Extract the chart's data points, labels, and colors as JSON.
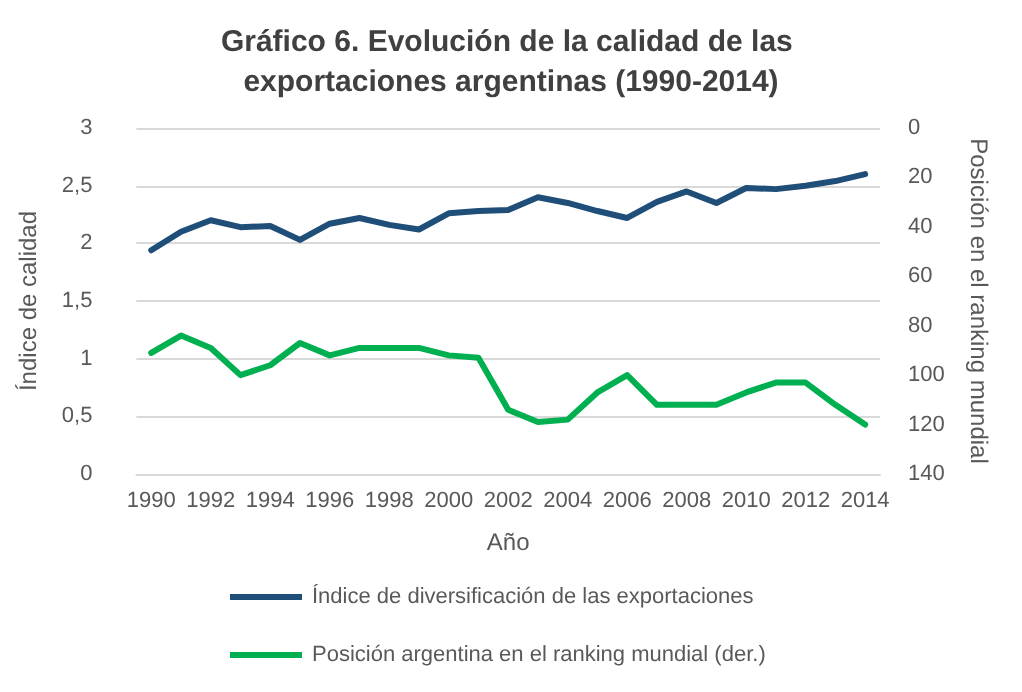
{
  "chart_data": {
    "type": "line",
    "title": "Gráfico 6. Evolución de la calidad de las exportaciones argentinas (1990-2014)",
    "xlabel": "Año",
    "ylabel": "Índice de calidad",
    "y2label": "Posición en el ranking mundial",
    "categories": [
      "1990",
      null,
      "1992",
      null,
      "1994",
      null,
      "1996",
      null,
      "1998",
      null,
      "2000",
      null,
      "2002",
      null,
      "2004",
      null,
      "2006",
      null,
      "2008",
      null,
      "2010",
      null,
      "2012",
      null,
      "2014"
    ],
    "series": [
      {
        "name": "Índice de diversificación de las exportaciones",
        "color": "#1f4e79",
        "values": [
          1.94,
          2.1,
          2.2,
          2.14,
          2.15,
          2.03,
          2.17,
          2.22,
          2.16,
          2.12,
          2.26,
          2.28,
          2.29,
          2.4,
          2.35,
          2.28,
          2.22,
          2.36,
          2.45,
          2.35,
          2.48,
          2.47,
          2.5,
          2.54,
          2.6
        ]
      },
      {
        "name": "Posición argentina en el ranking mundial (der.)",
        "color": "#00b050",
        "axis": "y2",
        "values": [
          91,
          84,
          89,
          100,
          96,
          87,
          92,
          89,
          89,
          89,
          92,
          93,
          114,
          119,
          118,
          107,
          100,
          112,
          112,
          112,
          107,
          103,
          103,
          112,
          120
        ]
      }
    ],
    "ylim": [
      0,
      3
    ],
    "yticks": [
      0,
      {
        "value": 0.5,
        "label": "0,5"
      },
      1,
      {
        "value": 1.5,
        "label": "1,5"
      },
      2,
      {
        "value": 2.5,
        "label": "2,5"
      },
      3
    ],
    "y2lim": [
      140,
      0
    ],
    "y2ticks": [
      0,
      20,
      40,
      60,
      80,
      100,
      120,
      140
    ],
    "grid": "y",
    "legend": "bottom",
    "marker": "none",
    "line_style": "solid"
  }
}
